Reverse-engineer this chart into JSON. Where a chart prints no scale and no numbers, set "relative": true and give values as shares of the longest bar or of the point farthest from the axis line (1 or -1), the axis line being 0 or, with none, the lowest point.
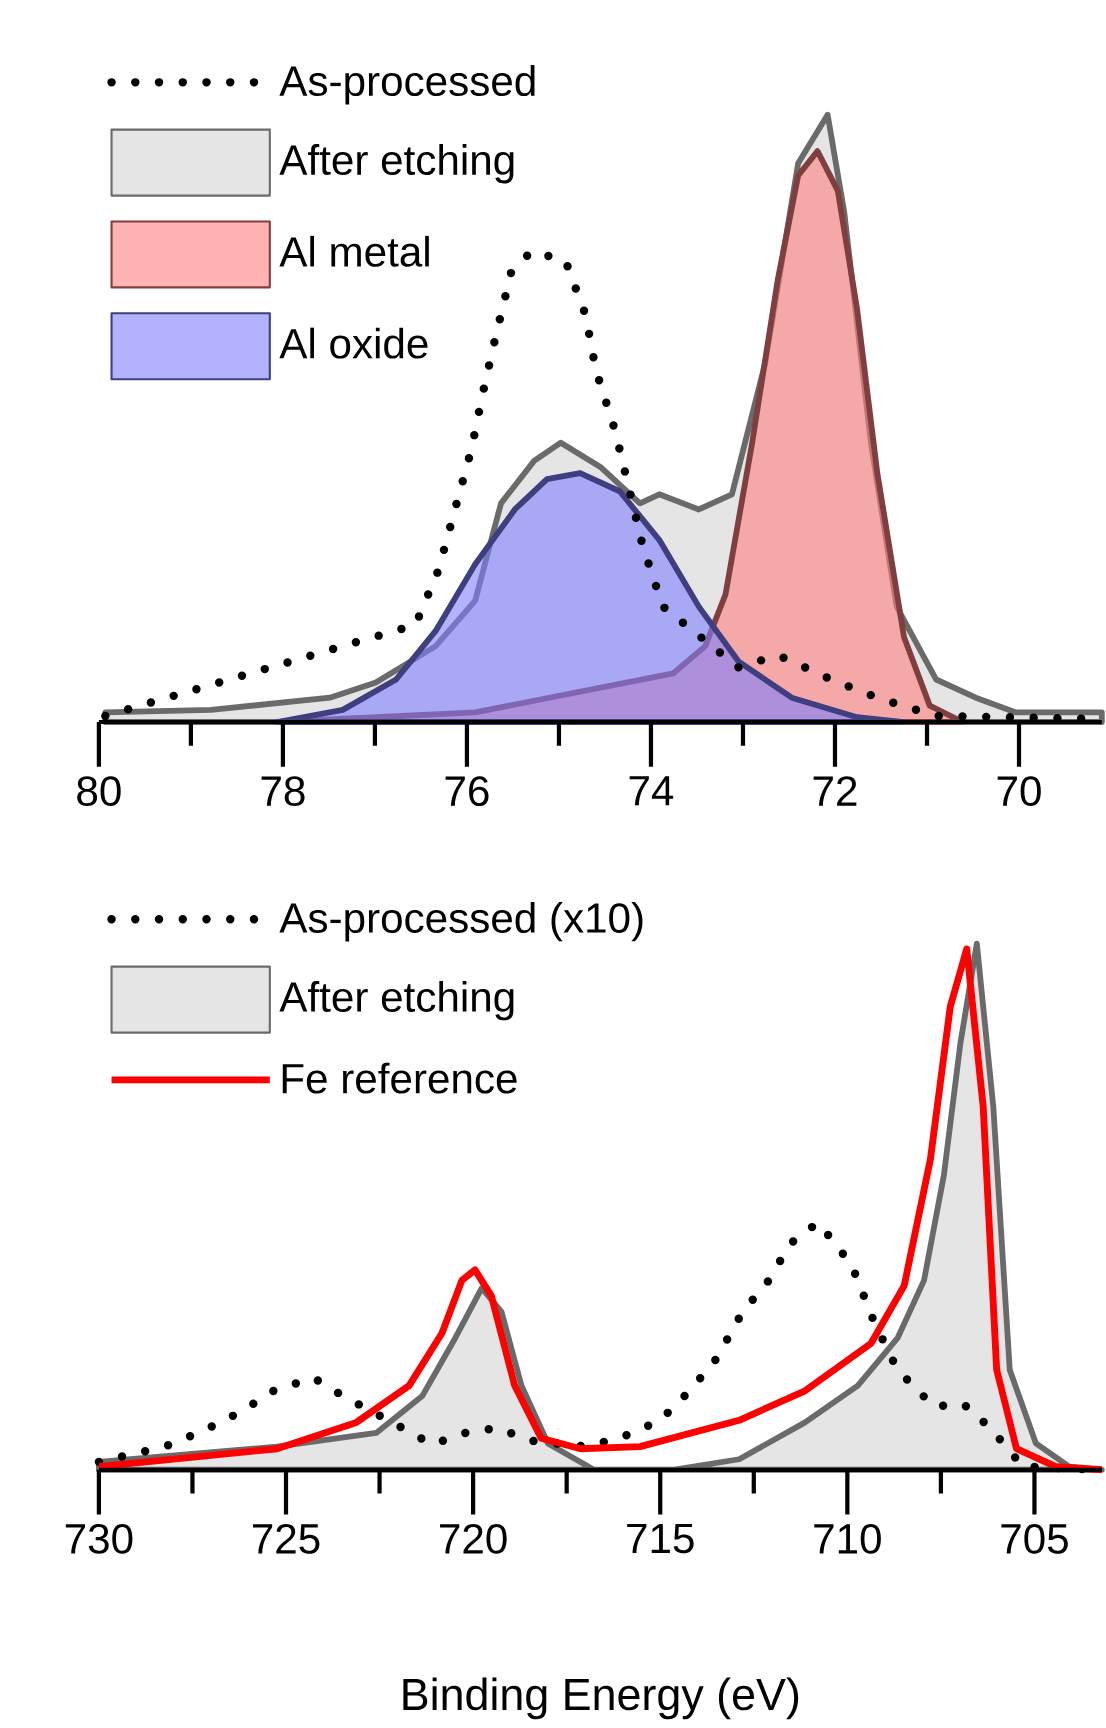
{
  "chart_data": [
    {
      "type": "area",
      "relative": true,
      "legend": "top left",
      "xlim": [
        80,
        69.1
      ],
      "xticks": [
        80,
        {
          "value": 79,
          "label": null
        },
        78,
        {
          "value": 77,
          "label": null
        },
        76,
        {
          "value": 75,
          "label": null
        },
        74,
        {
          "value": 73,
          "label": null
        },
        72,
        {
          "value": 71,
          "label": null
        },
        70
      ],
      "series": [
        {
          "name": "As-processed",
          "type": "line",
          "line_style": "dotted",
          "color": "#000000",
          "x": [
            79.93,
            76.56,
            76.31,
            76.13,
            75.95,
            75.83,
            75.68,
            75.52,
            75.3,
            74.93,
            74.71,
            74.6,
            74.39,
            74.09,
            73.87,
            73.05,
            72.62,
            72.04,
            71.54,
            70.9,
            69.1
          ],
          "values": [
            0.01,
            0.16,
            0.25,
            0.35,
            0.45,
            0.54,
            0.64,
            0.74,
            0.775,
            0.76,
            0.67,
            0.58,
            0.48,
            0.29,
            0.19,
            0.09,
            0.11,
            0.07,
            0.04,
            0.01,
            0.005
          ]
        },
        {
          "name": "After etching",
          "color": "#d3d3d3",
          "x": [
            79.93,
            78.78,
            77.49,
            76.99,
            76.34,
            75.91,
            75.63,
            75.27,
            74.98,
            74.55,
            74.12,
            73.91,
            73.48,
            73.12,
            72.76,
            72.4,
            72.08,
            71.9,
            71.61,
            71.33,
            70.9,
            70.47,
            70.04,
            69.1
          ],
          "values": [
            0.016,
            0.02,
            0.04,
            0.065,
            0.125,
            0.2,
            0.36,
            0.43,
            0.46,
            0.42,
            0.36,
            0.375,
            0.35,
            0.375,
            0.59,
            0.92,
            1.0,
            0.84,
            0.46,
            0.19,
            0.07,
            0.04,
            0.016,
            0.016
          ]
        },
        {
          "name": "Al metal",
          "color": "#ff7f7f",
          "x": [
            78.06,
            75.91,
            73.76,
            73.41,
            73.19,
            72.9,
            72.62,
            72.4,
            72.19,
            71.97,
            71.76,
            71.54,
            71.25,
            70.97,
            70.61
          ],
          "values": [
            0.0,
            0.016,
            0.08,
            0.125,
            0.21,
            0.46,
            0.73,
            0.9,
            0.94,
            0.875,
            0.68,
            0.41,
            0.14,
            0.027,
            0.0
          ]
        },
        {
          "name": "Al oxide",
          "color": "#7f7fff",
          "x": [
            78.06,
            77.35,
            76.77,
            76.34,
            75.91,
            75.48,
            75.13,
            74.77,
            74.34,
            73.91,
            73.48,
            73.05,
            72.47,
            71.76,
            71.25
          ],
          "values": [
            0.0,
            0.02,
            0.07,
            0.15,
            0.26,
            0.35,
            0.4,
            0.41,
            0.38,
            0.3,
            0.19,
            0.1,
            0.04,
            0.008,
            0.0
          ]
        }
      ]
    },
    {
      "type": "area",
      "relative": true,
      "legend": "top left",
      "xlim": [
        730,
        703.2
      ],
      "xlabel": "Binding Energy (eV)",
      "xticks": [
        730,
        {
          "value": 727.5,
          "label": null
        },
        725,
        {
          "value": 722.5,
          "label": null
        },
        720,
        {
          "value": 717.5,
          "label": null
        },
        715,
        {
          "value": 712.5,
          "label": null
        },
        710,
        {
          "value": 707.5,
          "label": null
        },
        705
      ],
      "series": [
        {
          "name": "As-processed (x10)",
          "type": "line",
          "line_style": "dotted",
          "color": "#000000",
          "x": [
            730,
            728.24,
            727.18,
            726.21,
            725.33,
            724.27,
            723.47,
            722.68,
            721.09,
            720.21,
            719.33,
            718.54,
            716.95,
            715.98,
            715.0,
            714.21,
            713.51,
            712.8,
            712.1,
            711.52,
            710.78,
            709.89,
            709.28,
            708.66,
            707.69,
            706.9,
            706.19,
            705.31,
            703.2
          ],
          "values": [
            0.015,
            0.044,
            0.075,
            0.11,
            0.15,
            0.175,
            0.14,
            0.11,
            0.048,
            0.07,
            0.08,
            0.056,
            0.044,
            0.063,
            0.094,
            0.15,
            0.21,
            0.3,
            0.36,
            0.43,
            0.47,
            0.39,
            0.28,
            0.19,
            0.12,
            0.125,
            0.08,
            0.006,
            0.0
          ]
        },
        {
          "name": "After etching",
          "color": "#d3d3d3",
          "x": [
            730,
            725.24,
            722.59,
            721.36,
            720.48,
            719.77,
            719.24,
            718.71,
            718.0,
            716.77,
            714.66,
            712.89,
            711.13,
            709.72,
            708.66,
            707.95,
            707.42,
            706.98,
            706.54,
            706.1,
            705.66,
            704.96,
            704.07,
            703.2
          ],
          "values": [
            0.015,
            0.044,
            0.07,
            0.14,
            0.25,
            0.345,
            0.3,
            0.16,
            0.05,
            0.0,
            0.0,
            0.02,
            0.09,
            0.16,
            0.25,
            0.36,
            0.56,
            0.81,
            1.0,
            0.69,
            0.19,
            0.05,
            0.006,
            0.0
          ]
        },
        {
          "name": "Fe reference",
          "type": "line",
          "line_style": "solid",
          "color": "#ff0000",
          "x": [
            730,
            725.24,
            723.12,
            721.71,
            720.83,
            720.3,
            719.95,
            719.51,
            718.89,
            718.18,
            717.13,
            715.54,
            712.89,
            711.13,
            709.37,
            708.48,
            707.78,
            707.25,
            706.81,
            706.37,
            706.01,
            705.48,
            704.43,
            703.2
          ],
          "values": [
            0.006,
            0.04,
            0.09,
            0.16,
            0.26,
            0.36,
            0.38,
            0.33,
            0.16,
            0.06,
            0.04,
            0.044,
            0.094,
            0.15,
            0.24,
            0.35,
            0.59,
            0.88,
            0.99,
            0.69,
            0.19,
            0.04,
            0.006,
            0.0
          ]
        }
      ]
    }
  ]
}
